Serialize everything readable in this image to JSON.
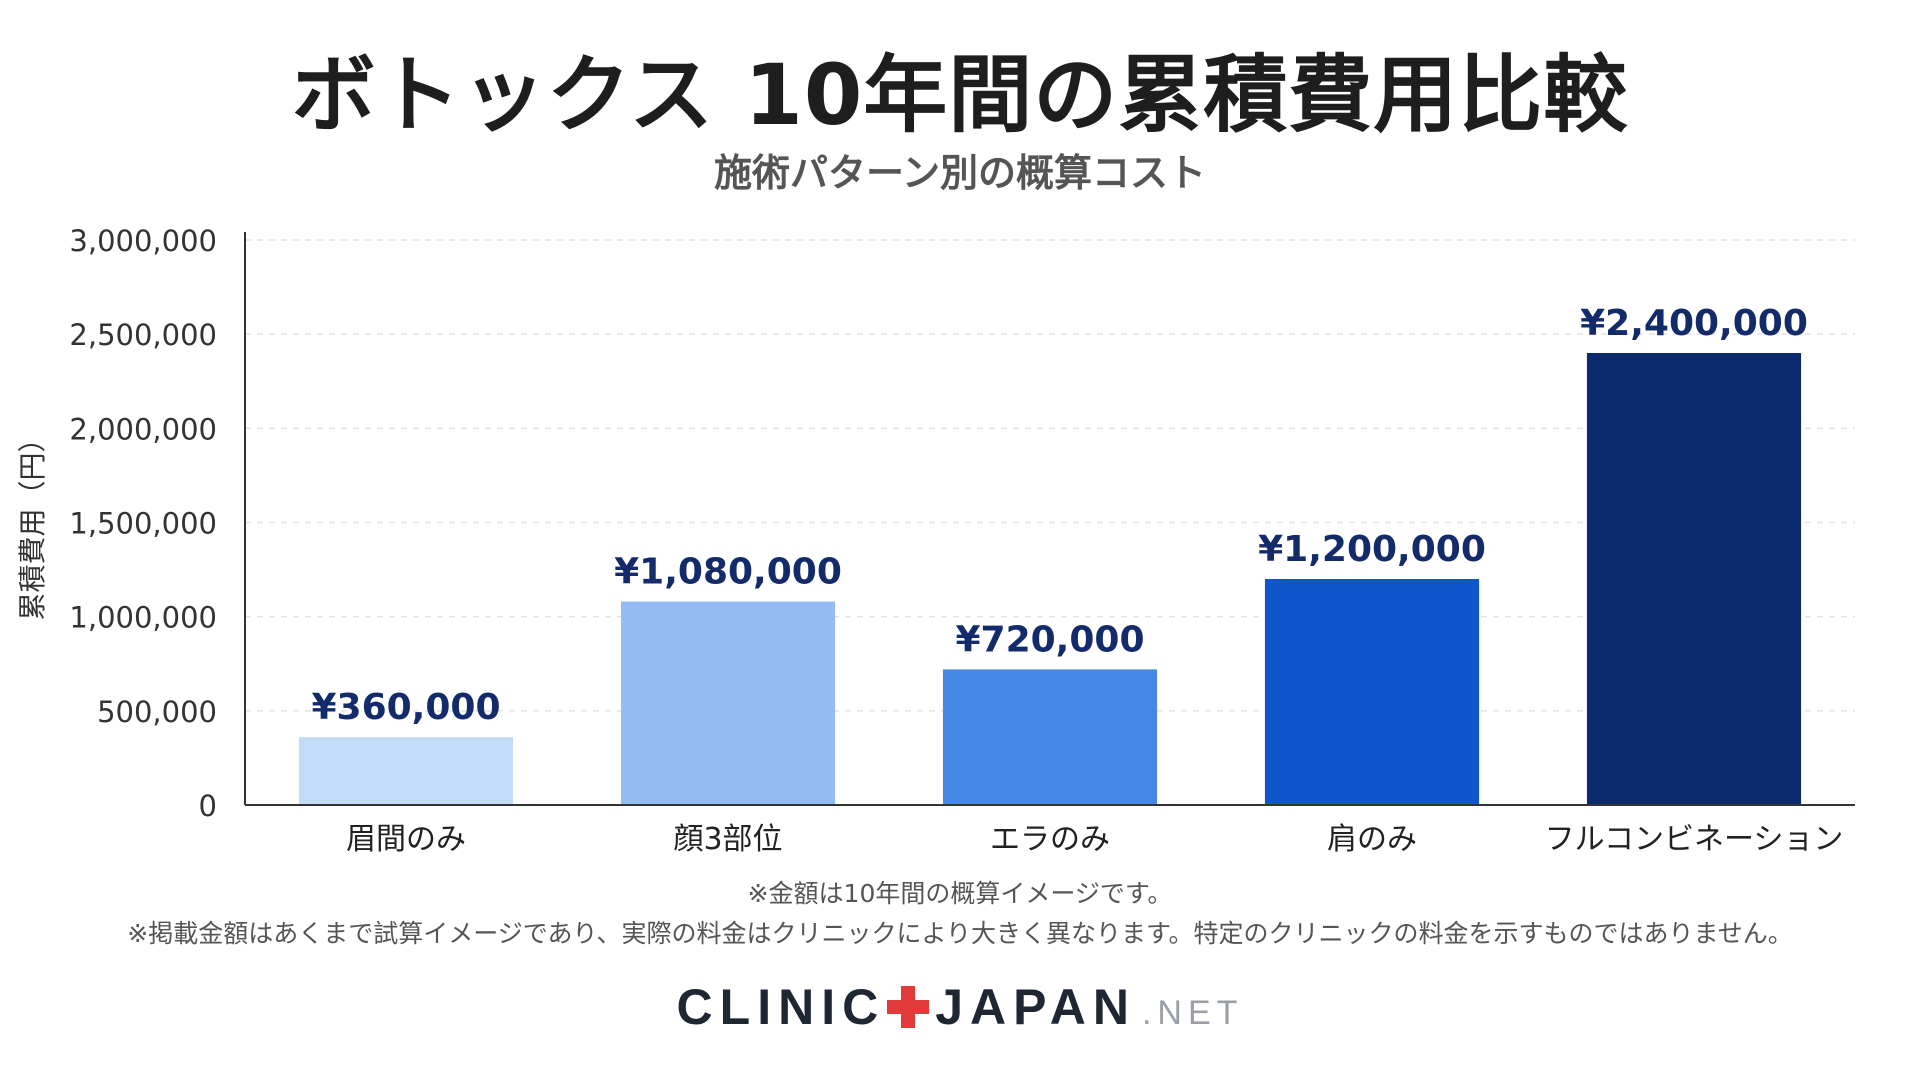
{
  "chart_data": {
    "type": "bar",
    "title": "ボトックス 10年間の累積費用比較",
    "subtitle": "施術パターン別の概算コスト",
    "ylabel": "累積費用（円）",
    "xlabel": "",
    "ylim": [
      0,
      3000000
    ],
    "y_ticks": [
      0,
      500000,
      1000000,
      1500000,
      2000000,
      2500000,
      3000000
    ],
    "y_tick_labels": [
      "0",
      "500,000",
      "1,000,000",
      "1,500,000",
      "2,000,000",
      "2,500,000",
      "3,000,000"
    ],
    "grid": true,
    "categories": [
      "眉間のみ",
      "顔3部位",
      "エラのみ",
      "肩のみ",
      "フルコンビネーション"
    ],
    "values": [
      360000,
      1080000,
      720000,
      1200000,
      2400000
    ],
    "data_labels": [
      "¥360,000",
      "¥1,080,000",
      "¥720,000",
      "¥1,200,000",
      "¥2,400,000"
    ],
    "colors": [
      "#c2dbf7",
      "#93bdf2",
      "#4688e6",
      "#0f56cc",
      "#0b2a6e"
    ],
    "label_color": "#142b6b"
  },
  "notes": {
    "note1": "※金額は10年間の概算イメージです。",
    "note2": "※掲載金額はあくまで試算イメージであり、実際の料金はクリニックにより大きく異なります。特定のクリニックの料金を示すものではありません。"
  },
  "brand": {
    "left": "CLINIC",
    "right": "JAPAN",
    "suffix": ".NET"
  }
}
